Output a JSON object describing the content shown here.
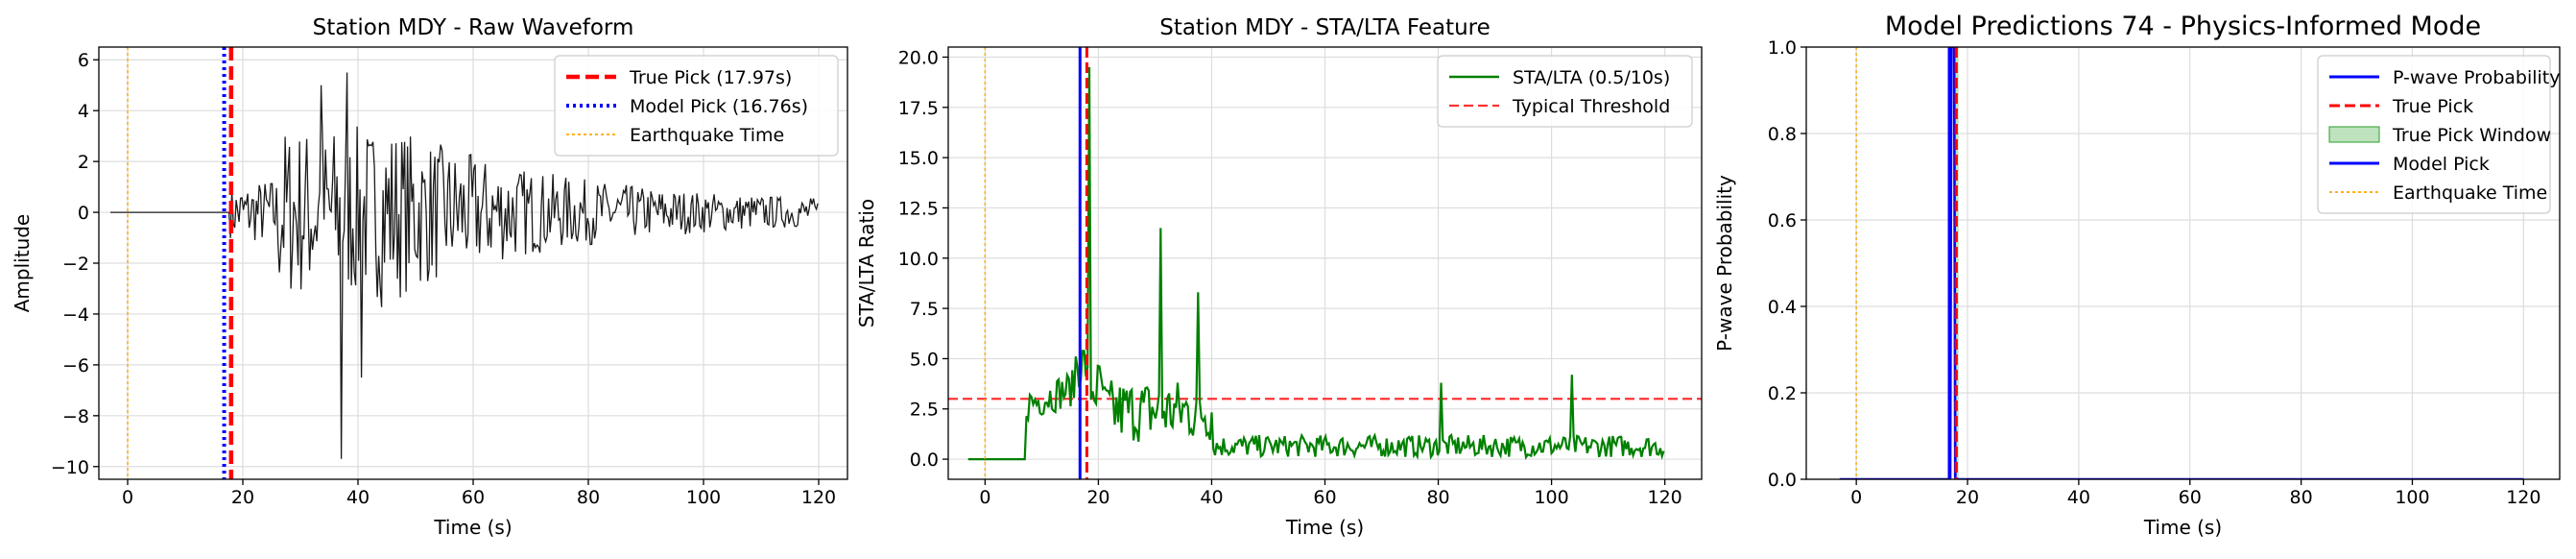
{
  "colors": {
    "waveform": "#1a1a1a",
    "true_pick": "#ff0000",
    "model_pick": "#0000ff",
    "earthquake": "#ffa500",
    "sta_lta": "#008000",
    "threshold": "#ff3333",
    "true_window": "#2ca02c",
    "grid": "#dddddd"
  },
  "chart_data": [
    {
      "type": "line",
      "title": "Station MDY - Raw Waveform",
      "xlabel": "Time (s)",
      "ylabel": "Amplitude",
      "xlim": [
        -5,
        125
      ],
      "ylim": [
        -10.5,
        6.5
      ],
      "xticks": [
        0,
        20,
        40,
        60,
        80,
        100,
        120
      ],
      "xtick_labels": [
        "0",
        "20",
        "40",
        "60",
        "80",
        "100",
        "120"
      ],
      "yticks": [
        -10,
        -8,
        -6,
        -4,
        -2,
        0,
        2,
        4,
        6
      ],
      "ytick_labels": [
        "−10",
        "−8",
        "−6",
        "−4",
        "−2",
        "0",
        "2",
        "4",
        "6"
      ],
      "grid": true,
      "legend_position": "top-right",
      "legend": [
        "True Pick (17.97s)",
        "Model Pick (16.76s)",
        "Earthquake Time"
      ],
      "series": [
        {
          "t_start": -3,
          "t_end": 120,
          "flat_until": 17.6,
          "peak": [
            37.2,
            -9.7
          ],
          "peak2": [
            40.5,
            -6.5
          ],
          "max_amplitude": 5.5
        }
      ],
      "vlines": {
        "true_pick": 17.97,
        "model_pick": 16.76,
        "earthquake_time": 0
      }
    },
    {
      "type": "line",
      "title": "Station MDY - STA/LTA Feature",
      "xlabel": "Time (s)",
      "ylabel": "STA/LTA Ratio",
      "xlim": [
        -6.5,
        126.5
      ],
      "ylim": [
        -1,
        20.5
      ],
      "xticks": [
        0,
        20,
        40,
        60,
        80,
        100,
        120
      ],
      "xtick_labels": [
        "0",
        "20",
        "40",
        "60",
        "80",
        "100",
        "120"
      ],
      "yticks": [
        0,
        2.5,
        5,
        7.5,
        10,
        12.5,
        15,
        17.5,
        20
      ],
      "ytick_labels": [
        "0.0",
        "2.5",
        "5.0",
        "7.5",
        "10.0",
        "12.5",
        "15.0",
        "17.5",
        "20.0"
      ],
      "grid": true,
      "legend_position": "top-right",
      "legend": [
        "STA/LTA (0.5/10s)",
        "Typical Threshold"
      ],
      "threshold": 3,
      "series": [
        {
          "name": "STA/LTA (0.5/10s)",
          "t_start": -3,
          "t_end": 120,
          "flat_until": 7,
          "peak": [
            18.3,
            19.5
          ],
          "spikes": [
            [
              31,
              11.5
            ],
            [
              37.5,
              8.3
            ],
            [
              80.5,
              3.8
            ],
            [
              103.5,
              4.2
            ]
          ]
        }
      ],
      "vlines": {
        "true_pick": 17.97,
        "model_pick": 16.76,
        "earthquake_time": 0
      }
    },
    {
      "type": "line",
      "title": "Model Predictions 74 - Physics-Informed Mode",
      "xlabel": "Time (s)",
      "ylabel": "P-wave Probability",
      "xlim": [
        -9,
        126.5
      ],
      "ylim": [
        0,
        1
      ],
      "xticks": [
        0,
        20,
        40,
        60,
        80,
        100,
        120
      ],
      "xtick_labels": [
        "0",
        "20",
        "40",
        "60",
        "80",
        "100",
        "120"
      ],
      "yticks": [
        0,
        0.2,
        0.4,
        0.6,
        0.8,
        1.0
      ],
      "ytick_labels": [
        "0.0",
        "0.2",
        "0.4",
        "0.6",
        "0.8",
        "1.0"
      ],
      "grid": true,
      "legend_position": "top-right",
      "legend": [
        "P-wave Probability",
        "True Pick",
        "True Pick Window",
        "Model Pick",
        "Earthquake Time"
      ],
      "true_pick_window": [
        17.5,
        18.4
      ],
      "series": [
        {
          "name": "P-wave Probability",
          "t_start": -3,
          "t_end": 120,
          "peak_time": 17.2,
          "peak_value": 1.0
        }
      ],
      "vlines": {
        "true_pick": 17.97,
        "model_pick": 16.76,
        "earthquake_time": 0
      }
    }
  ]
}
